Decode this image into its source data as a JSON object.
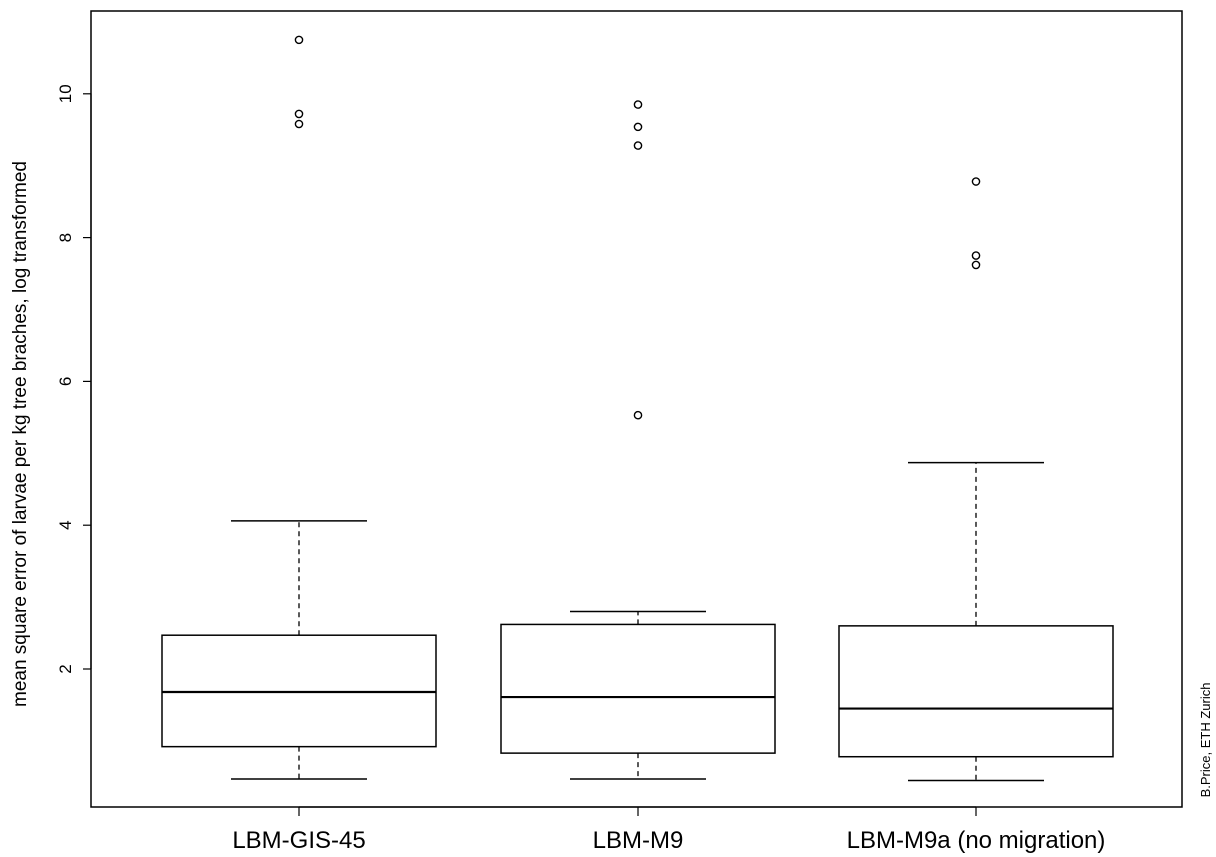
{
  "chart_data": {
    "type": "boxplot",
    "title": "",
    "xlabel": "",
    "ylabel": "mean square error of larvae per kg tree braches, log transformed",
    "ylim": [
      0.1,
      11.4
    ],
    "yticks": [
      2,
      4,
      6,
      8,
      10
    ],
    "grid": false,
    "categories": [
      "LBM-GIS-45",
      "LBM-M9",
      "LBM-M9a (no migration)"
    ],
    "boxes": [
      {
        "name": "LBM-GIS-45",
        "whisker_low": 0.47,
        "q1": 0.92,
        "median": 1.68,
        "q3": 2.47,
        "whisker_high": 4.06,
        "outliers": [
          9.58,
          9.72,
          10.75
        ]
      },
      {
        "name": "LBM-M9",
        "whisker_low": 0.47,
        "q1": 0.83,
        "median": 1.61,
        "q3": 2.62,
        "whisker_high": 2.8,
        "outliers": [
          5.53,
          9.28,
          9.54,
          9.85
        ]
      },
      {
        "name": "LBM-M9a (no migration)",
        "whisker_low": 0.45,
        "q1": 0.78,
        "median": 1.45,
        "q3": 2.6,
        "whisker_high": 4.87,
        "outliers": [
          7.62,
          7.75,
          8.78
        ]
      }
    ],
    "credit": "B.Price, ETH Zurich"
  }
}
